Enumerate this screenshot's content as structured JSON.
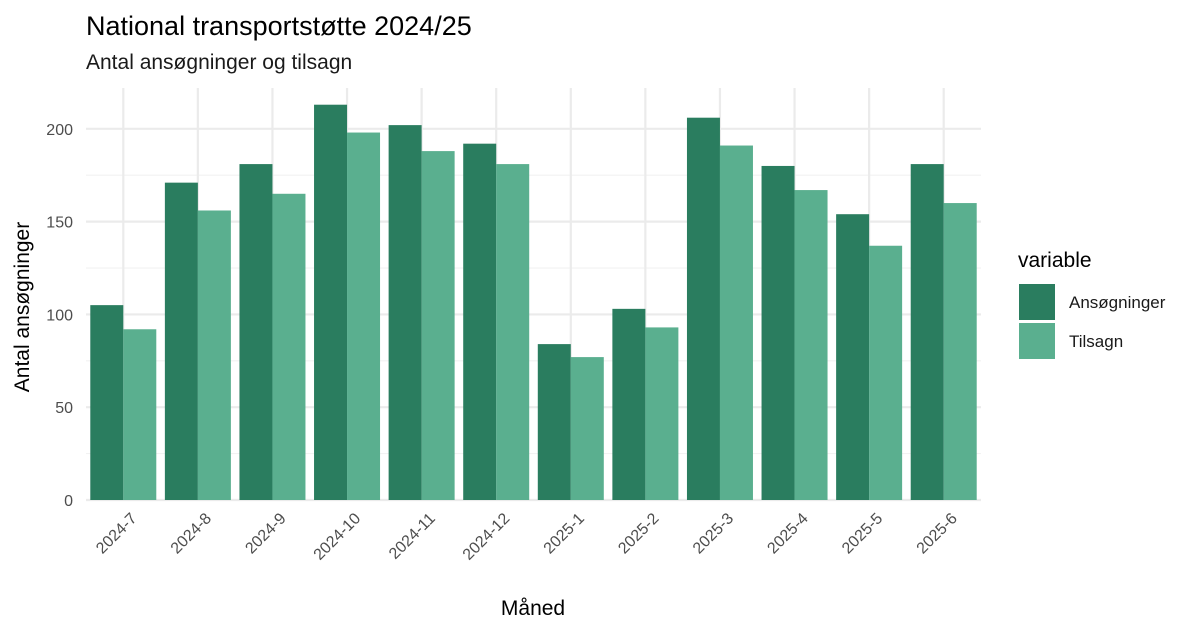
{
  "chart_data": {
    "type": "bar",
    "title": "National transportstøtte 2024/25",
    "subtitle": "Antal ansøgninger og tilsagn",
    "xlabel": "Måned",
    "ylabel": "Antal ansøgninger",
    "categories": [
      "2024-7",
      "2024-8",
      "2024-9",
      "2024-10",
      "2024-11",
      "2024-12",
      "2025-1",
      "2025-2",
      "2025-3",
      "2025-4",
      "2025-5",
      "2025-6"
    ],
    "series": [
      {
        "name": "Ansøgninger",
        "color": "#2a7d5f",
        "values": [
          105,
          171,
          181,
          213,
          202,
          192,
          84,
          103,
          206,
          180,
          154,
          181
        ]
      },
      {
        "name": "Tilsagn",
        "color": "#5aaf8f",
        "values": [
          92,
          156,
          165,
          198,
          188,
          181,
          77,
          93,
          191,
          167,
          137,
          160
        ]
      }
    ],
    "ylim": [
      0,
      222
    ],
    "yticks": [
      0,
      50,
      100,
      150,
      200
    ],
    "grid": true,
    "legend": {
      "title": "variable",
      "position": "right"
    }
  }
}
